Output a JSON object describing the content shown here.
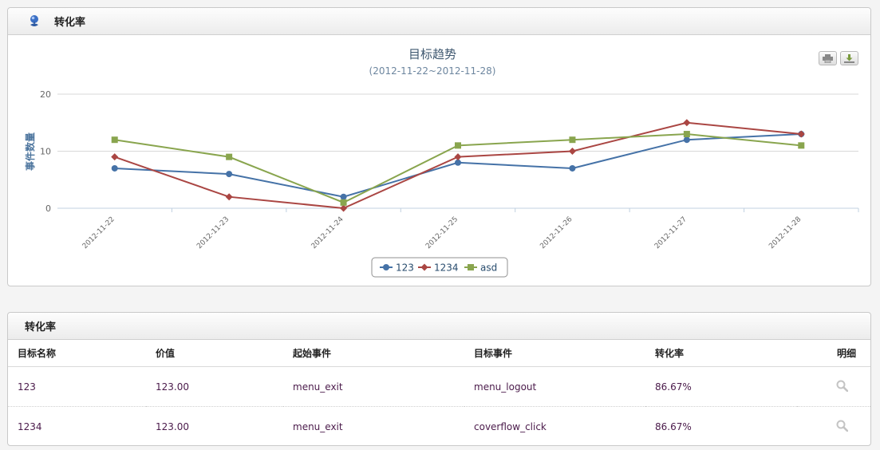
{
  "chart_panel": {
    "title": "转化率",
    "header_icon": "map-pin-icon",
    "print_icon": "print-icon",
    "download_icon": "download-icon"
  },
  "chart_data": {
    "type": "line",
    "title": "目标趋势",
    "subtitle": "(2012-11-22~2012-11-28)",
    "ylabel": "事件数量",
    "xlabel": "",
    "ylim": [
      0,
      20
    ],
    "yticks": [
      "0",
      "10",
      "20"
    ],
    "grid": true,
    "legend_position": "bottom-center",
    "categories": [
      "2012-11-22",
      "2012-11-23",
      "2012-11-24",
      "2012-11-25",
      "2012-11-26",
      "2012-11-27",
      "2012-11-28"
    ],
    "series": [
      {
        "name": "123",
        "color": "#4572a7",
        "marker": "circle",
        "values": [
          7,
          6,
          2,
          8,
          7,
          12,
          13
        ]
      },
      {
        "name": "1234",
        "color": "#aa4643",
        "marker": "diamond",
        "values": [
          9,
          2,
          0,
          9,
          10,
          15,
          13
        ]
      },
      {
        "name": "asd",
        "color": "#89a54e",
        "marker": "square",
        "values": [
          12,
          9,
          1,
          11,
          12,
          13,
          11
        ]
      }
    ]
  },
  "table_panel": {
    "title": "转化率",
    "columns": [
      "目标名称",
      "价值",
      "起始事件",
      "目标事件",
      "转化率",
      "明细"
    ],
    "rows": [
      {
        "name": "123",
        "value": "123.00",
        "start_event": "menu_exit",
        "target_event": "menu_logout",
        "rate": "86.67%",
        "detail_icon": "search-icon"
      },
      {
        "name": "1234",
        "value": "123.00",
        "start_event": "menu_exit",
        "target_event": "coverflow_click",
        "rate": "86.67%",
        "detail_icon": "search-icon"
      }
    ]
  }
}
